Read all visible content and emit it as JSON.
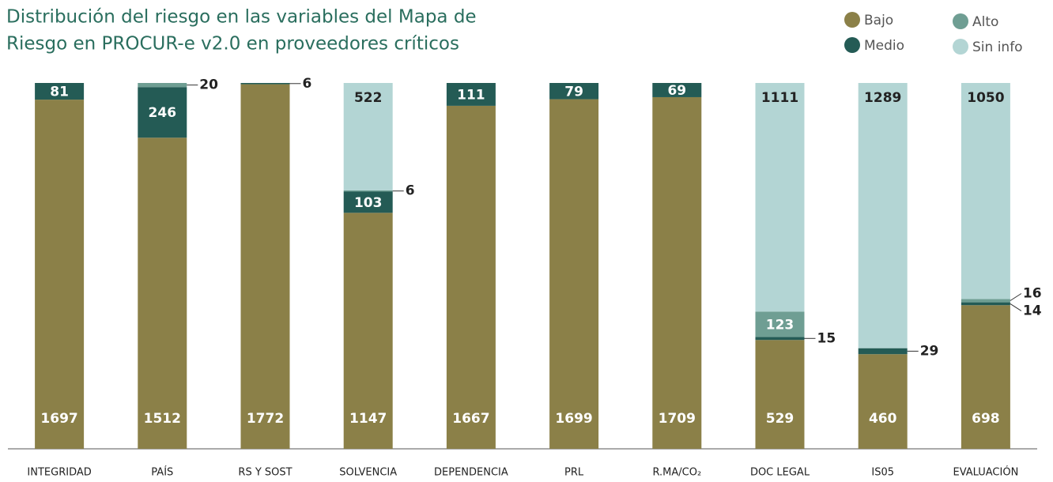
{
  "chart_data": {
    "type": "stacked-bar",
    "title": [
      "Distribución del riesgo en las variables del Mapa de",
      "Riesgo en PROCUR-e v2.0 en proveedores críticos"
    ],
    "categories": [
      "INTEGRIDAD",
      "PAÍS",
      "RS Y SOST",
      "SOLVENCIA",
      "DEPENDENCIA",
      "PRL",
      "R.MA/CO₂",
      "DOC LEGAL",
      "IS05",
      "EVALUACIÓN"
    ],
    "series": [
      {
        "name": "Bajo",
        "color": "#8b8048",
        "values": [
          1697,
          1512,
          1772,
          1147,
          1667,
          1699,
          1709,
          529,
          460,
          698
        ]
      },
      {
        "name": "Medio",
        "color": "#245b55",
        "values": [
          81,
          246,
          6,
          103,
          111,
          79,
          69,
          15,
          29,
          14
        ]
      },
      {
        "name": "Alto",
        "color": "#6f9e93",
        "values": [
          null,
          20,
          null,
          6,
          null,
          null,
          null,
          123,
          null,
          16
        ]
      },
      {
        "name": "Sin info",
        "color": "#b3d5d4",
        "values": [
          null,
          null,
          null,
          522,
          null,
          null,
          null,
          1111,
          1289,
          1050
        ]
      }
    ]
  }
}
